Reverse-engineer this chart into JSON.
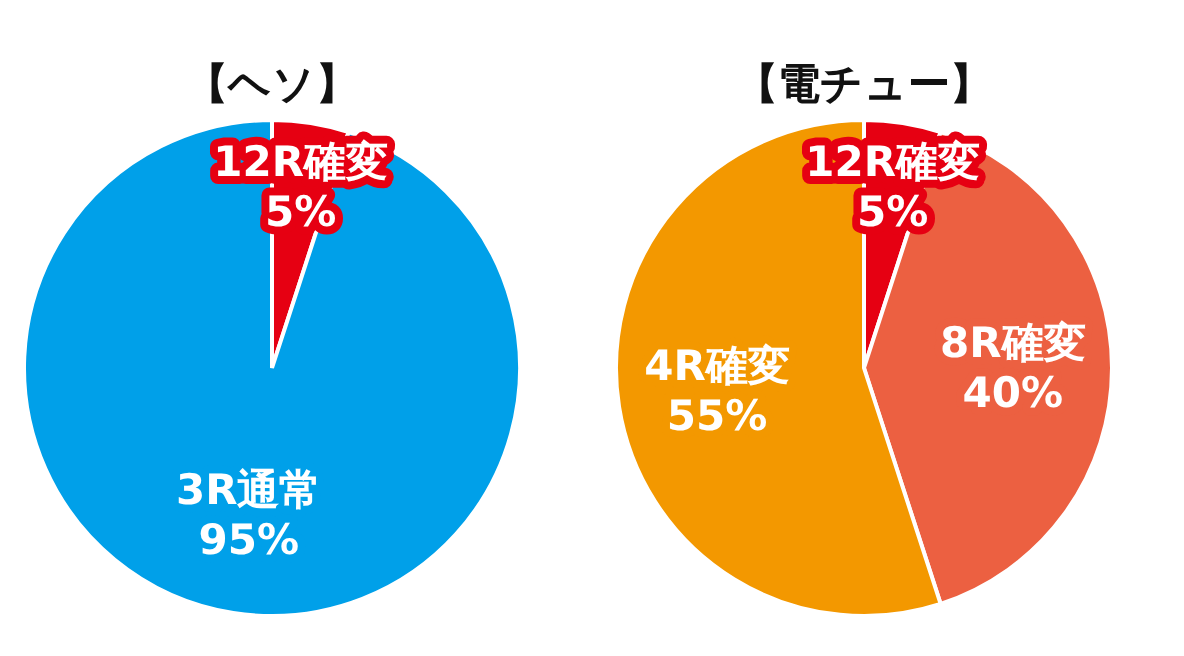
{
  "chart_data": [
    {
      "type": "pie",
      "title": "【ヘソ】",
      "categories": [
        "12R確変",
        "3R通常"
      ],
      "values": [
        5,
        95
      ],
      "value_labels": [
        "5%",
        "95%"
      ],
      "colors": [
        "#e60012",
        "#00a0e9"
      ]
    },
    {
      "type": "pie",
      "title": "【電チュー】",
      "categories": [
        "12R確変",
        "8R確変",
        "4R確変"
      ],
      "values": [
        5,
        40,
        55
      ],
      "value_labels": [
        "5%",
        "40%",
        "55%"
      ],
      "colors": [
        "#e60012",
        "#ec6041",
        "#f39800"
      ]
    }
  ]
}
